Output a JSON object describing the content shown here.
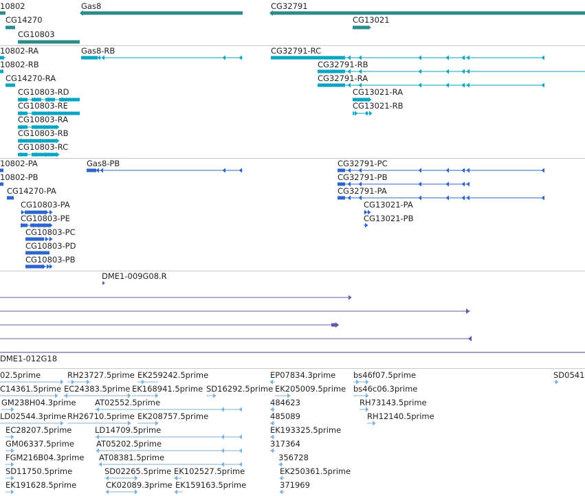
{
  "colors": {
    "gene": "#2b8c8c",
    "transcript": "#0aa5c2",
    "protein": "#2d64cf",
    "clone": "#6b54a8",
    "est": "#7fb2db",
    "divider": "#c9c9c9",
    "text": "#222222"
  },
  "tracks": {
    "genes": {
      "labels": [
        "10802",
        "Gas8",
        "CG32791",
        "CG14270",
        "CG13021",
        "CG10803"
      ]
    },
    "transcripts": {
      "labels": [
        "10802-RA",
        "Gas8-RB",
        "CG32791-RC",
        "10802-RB",
        "CG32791-RB",
        "CG14270-RA",
        "CG32791-RA",
        "CG10803-RD",
        "CG13021-RA",
        "CG10803-RE",
        "CG13021-RB",
        "CG10803-RA",
        "CG10803-RB",
        "CG10803-RC"
      ]
    },
    "proteins": {
      "labels": [
        "10802-PA",
        "Gas8-PB",
        "CG32791-PC",
        "10802-PB",
        "CG32791-PB",
        "CG14270-PA",
        "CG32791-PA",
        "CG10803-PA",
        "CG13021-PA",
        "CG10803-PE",
        "CG13021-PB",
        "CG10803-PC",
        "CG10803-PD",
        "CG10803-PB"
      ]
    },
    "clones": {
      "labels": [
        "DME1-009G08.R",
        "DME1-012G18"
      ]
    },
    "ests": {
      "labels": [
        "02.5prime",
        "RH23727.5prime",
        "EK259242.5prime",
        "EP07834.3prime",
        "bs46f07.5prime",
        "SD0541",
        "C14361.5prime",
        "EC24383.5prime",
        "EK168941.5prime",
        "SD16292.5prime",
        "EK205009.5prime",
        "bs46c06.3prime",
        "GM238H04.3prime",
        "AT02552.5prime",
        "484623",
        "RH73143.5prime",
        "LD02544.3prime",
        "RH26710.5prime",
        "EK208757.5prime",
        "485089",
        "RH12140.5prime",
        "EC28207.5prime",
        "LD14709.5prime",
        "EK193325.5prime",
        "GM06337.5prime",
        "AT05202.5prime",
        "317364",
        "FGM216B04.3prime",
        "AT08381.5prime",
        "356728",
        "SD11750.5prime",
        "SD02265.5prime",
        "EK102527.5prime",
        "EK250361.5prime",
        "EK191628.5prime",
        "CK02089.3prime",
        "EK159163.5prime",
        "371969"
      ]
    }
  }
}
